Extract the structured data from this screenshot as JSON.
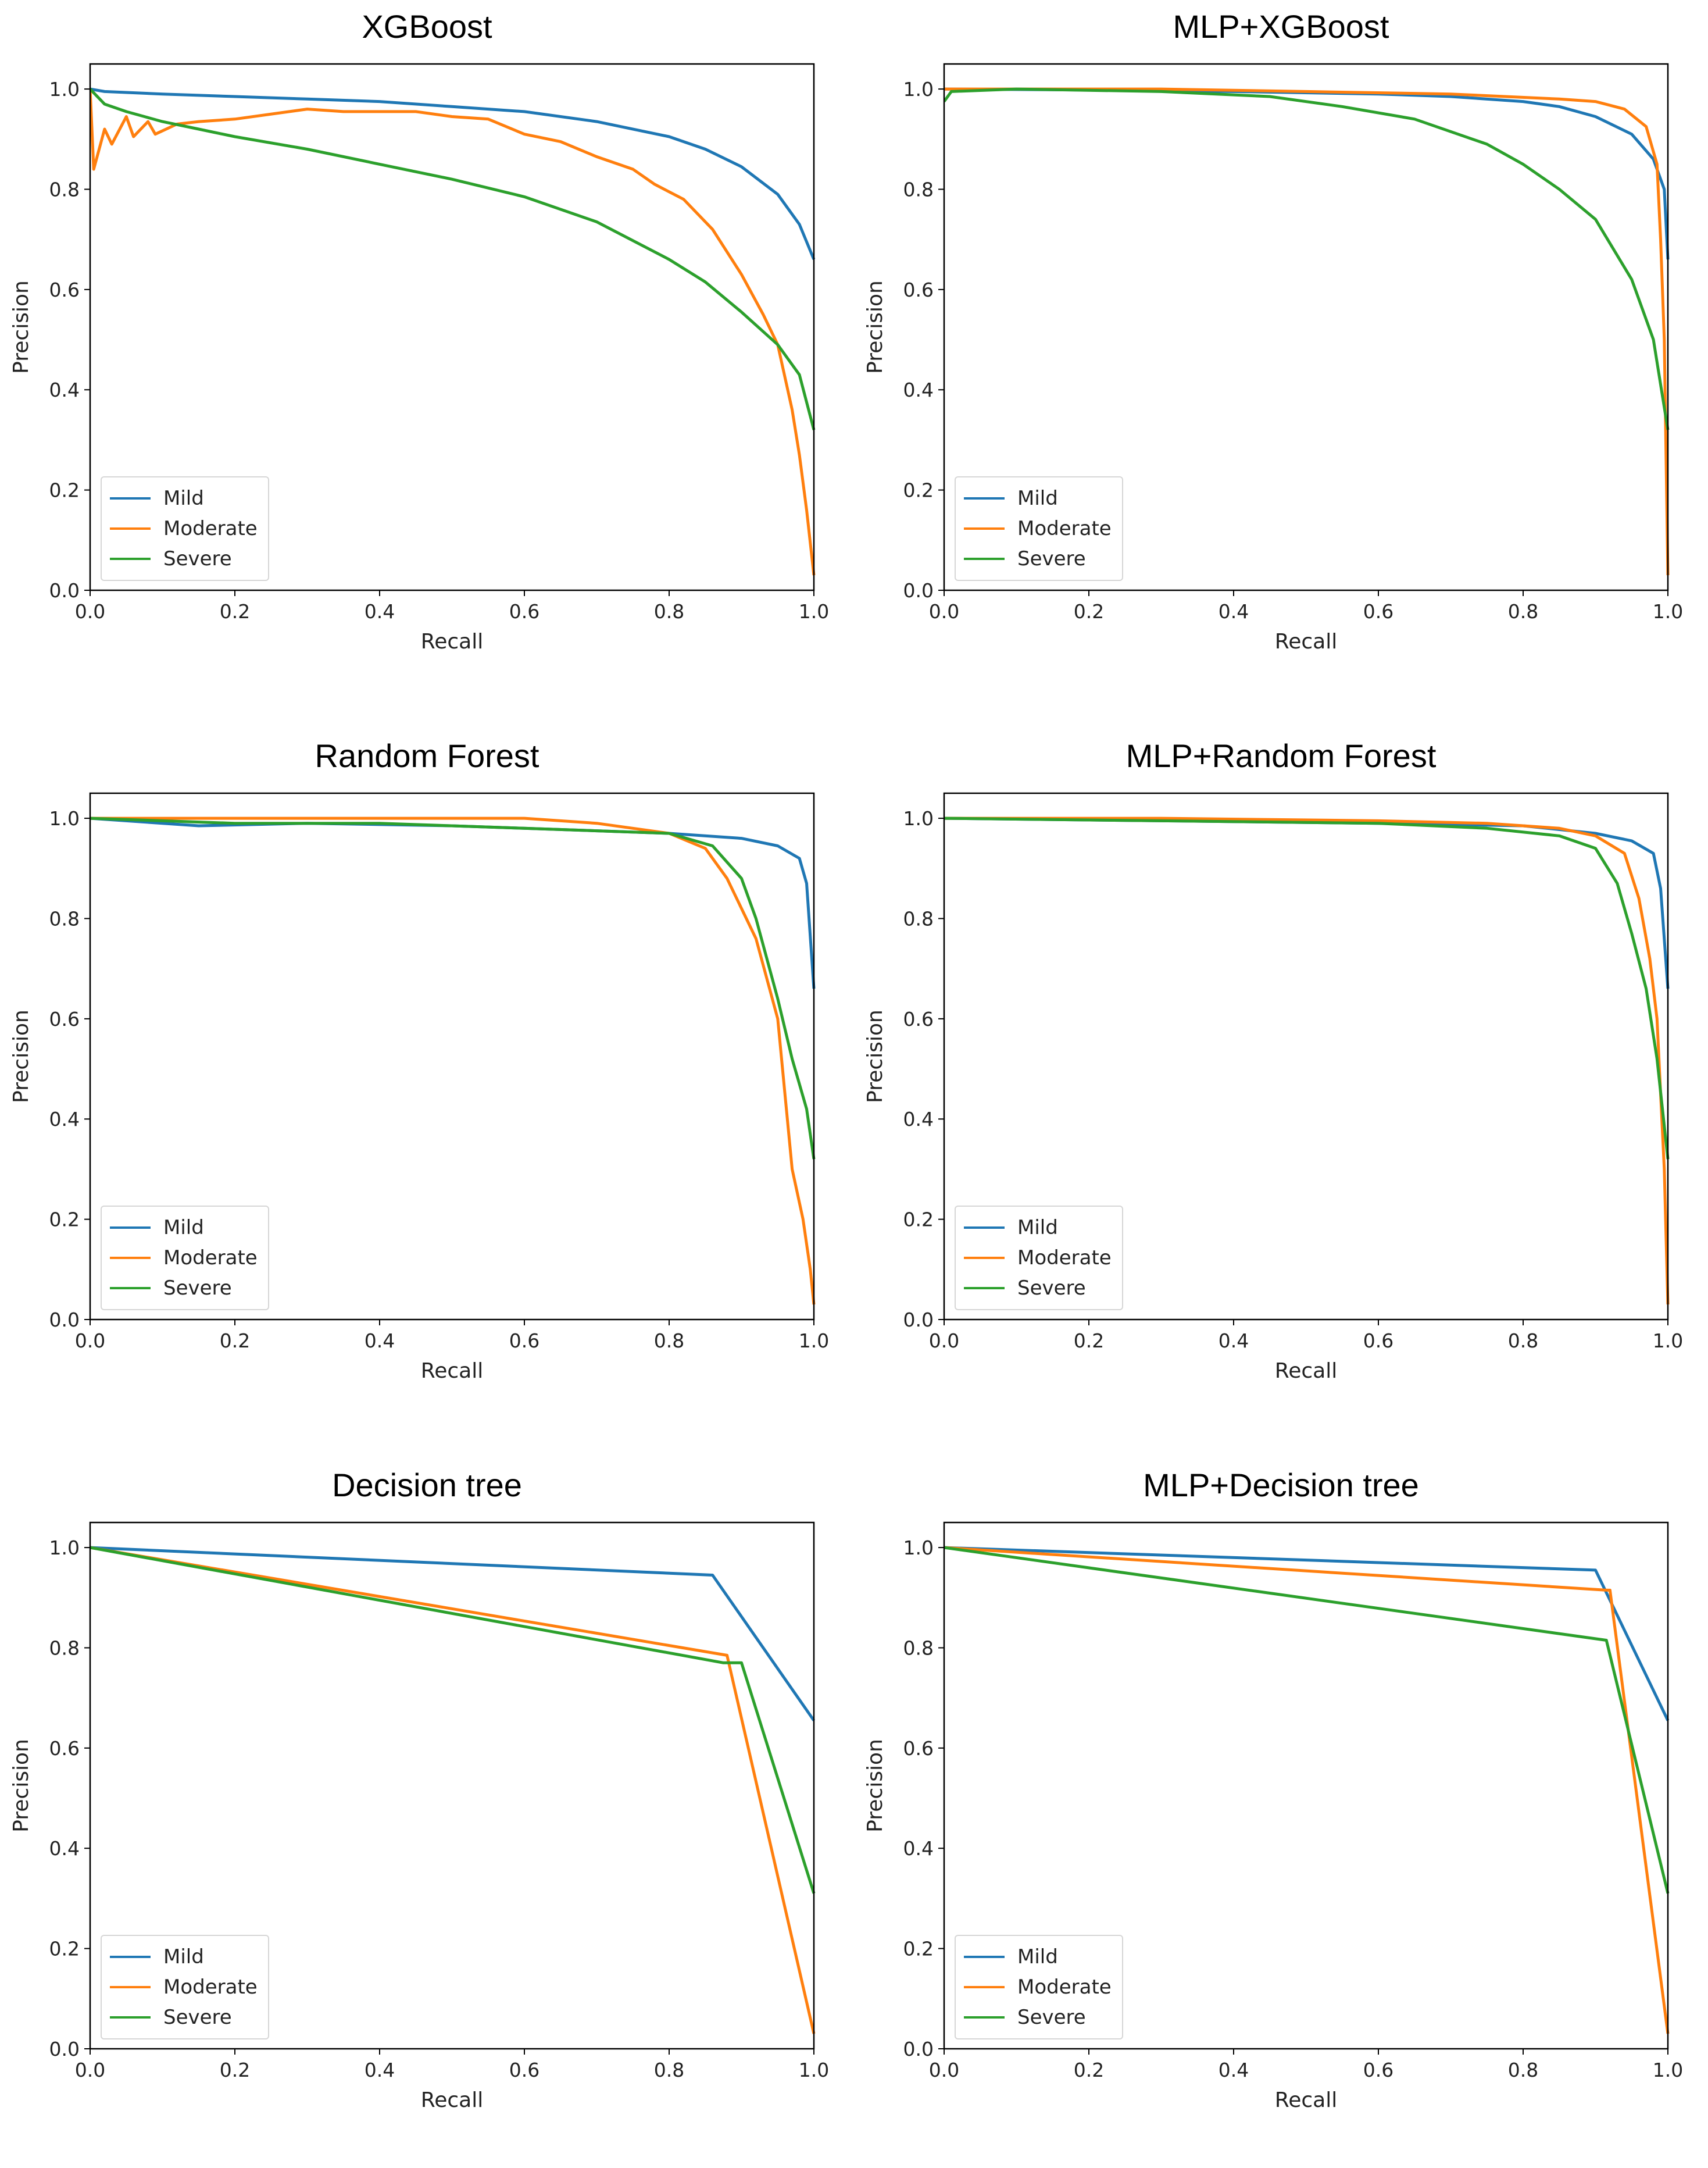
{
  "chart_data": [
    {
      "type": "line",
      "title": "XGBoost",
      "xlabel": "Recall",
      "ylabel": "Precision",
      "xlim": [
        0,
        1
      ],
      "ylim": [
        0,
        1.05
      ],
      "xticks": [
        "0.0",
        "0.2",
        "0.4",
        "0.6",
        "0.8",
        "1.0"
      ],
      "yticks": [
        "0.0",
        "0.2",
        "0.4",
        "0.6",
        "0.8",
        "1.0"
      ],
      "legend": "bottom-left",
      "series": [
        {
          "name": "Mild",
          "color": "#1f77b4",
          "points": [
            [
              0,
              1.0
            ],
            [
              0.02,
              0.995
            ],
            [
              0.1,
              0.99
            ],
            [
              0.2,
              0.985
            ],
            [
              0.3,
              0.98
            ],
            [
              0.4,
              0.975
            ],
            [
              0.5,
              0.965
            ],
            [
              0.6,
              0.955
            ],
            [
              0.7,
              0.935
            ],
            [
              0.8,
              0.905
            ],
            [
              0.85,
              0.88
            ],
            [
              0.9,
              0.845
            ],
            [
              0.95,
              0.79
            ],
            [
              0.98,
              0.73
            ],
            [
              1.0,
              0.66
            ]
          ]
        },
        {
          "name": "Moderate",
          "color": "#ff7f0e",
          "points": [
            [
              0,
              1.0
            ],
            [
              0.005,
              0.84
            ],
            [
              0.02,
              0.92
            ],
            [
              0.03,
              0.89
            ],
            [
              0.05,
              0.945
            ],
            [
              0.06,
              0.905
            ],
            [
              0.08,
              0.935
            ],
            [
              0.09,
              0.91
            ],
            [
              0.12,
              0.93
            ],
            [
              0.15,
              0.935
            ],
            [
              0.2,
              0.94
            ],
            [
              0.3,
              0.96
            ],
            [
              0.35,
              0.955
            ],
            [
              0.45,
              0.955
            ],
            [
              0.5,
              0.945
            ],
            [
              0.55,
              0.94
            ],
            [
              0.6,
              0.91
            ],
            [
              0.65,
              0.895
            ],
            [
              0.7,
              0.865
            ],
            [
              0.75,
              0.84
            ],
            [
              0.78,
              0.81
            ],
            [
              0.82,
              0.78
            ],
            [
              0.86,
              0.72
            ],
            [
              0.9,
              0.63
            ],
            [
              0.93,
              0.55
            ],
            [
              0.95,
              0.49
            ],
            [
              0.97,
              0.36
            ],
            [
              0.98,
              0.27
            ],
            [
              0.99,
              0.16
            ],
            [
              1.0,
              0.03
            ]
          ]
        },
        {
          "name": "Severe",
          "color": "#2ca02c",
          "points": [
            [
              0,
              1.0
            ],
            [
              0.02,
              0.97
            ],
            [
              0.05,
              0.955
            ],
            [
              0.1,
              0.935
            ],
            [
              0.15,
              0.92
            ],
            [
              0.2,
              0.905
            ],
            [
              0.3,
              0.88
            ],
            [
              0.4,
              0.85
            ],
            [
              0.5,
              0.82
            ],
            [
              0.6,
              0.785
            ],
            [
              0.7,
              0.735
            ],
            [
              0.8,
              0.66
            ],
            [
              0.85,
              0.615
            ],
            [
              0.9,
              0.555
            ],
            [
              0.95,
              0.49
            ],
            [
              0.98,
              0.43
            ],
            [
              1.0,
              0.32
            ]
          ]
        }
      ]
    },
    {
      "type": "line",
      "title": "MLP+XGBoost",
      "xlabel": "Recall",
      "ylabel": "Precision",
      "xlim": [
        0,
        1
      ],
      "ylim": [
        0,
        1.05
      ],
      "xticks": [
        "0.0",
        "0.2",
        "0.4",
        "0.6",
        "0.8",
        "1.0"
      ],
      "yticks": [
        "0.0",
        "0.2",
        "0.4",
        "0.6",
        "0.8",
        "1.0"
      ],
      "legend": "bottom-left",
      "series": [
        {
          "name": "Mild",
          "color": "#1f77b4",
          "points": [
            [
              0,
              1.0
            ],
            [
              0.2,
              0.998
            ],
            [
              0.4,
              0.995
            ],
            [
              0.6,
              0.99
            ],
            [
              0.7,
              0.985
            ],
            [
              0.8,
              0.975
            ],
            [
              0.85,
              0.965
            ],
            [
              0.9,
              0.945
            ],
            [
              0.95,
              0.91
            ],
            [
              0.98,
              0.86
            ],
            [
              0.995,
              0.8
            ],
            [
              1.0,
              0.66
            ]
          ]
        },
        {
          "name": "Moderate",
          "color": "#ff7f0e",
          "points": [
            [
              0,
              1.0
            ],
            [
              0.3,
              1.0
            ],
            [
              0.5,
              0.995
            ],
            [
              0.7,
              0.99
            ],
            [
              0.85,
              0.98
            ],
            [
              0.9,
              0.975
            ],
            [
              0.94,
              0.96
            ],
            [
              0.97,
              0.925
            ],
            [
              0.985,
              0.85
            ],
            [
              0.99,
              0.7
            ],
            [
              0.995,
              0.5
            ],
            [
              1.0,
              0.03
            ]
          ]
        },
        {
          "name": "Severe",
          "color": "#2ca02c",
          "points": [
            [
              0,
              0.975
            ],
            [
              0.01,
              0.995
            ],
            [
              0.1,
              1.0
            ],
            [
              0.3,
              0.995
            ],
            [
              0.45,
              0.985
            ],
            [
              0.55,
              0.965
            ],
            [
              0.65,
              0.94
            ],
            [
              0.75,
              0.89
            ],
            [
              0.8,
              0.85
            ],
            [
              0.85,
              0.8
            ],
            [
              0.9,
              0.74
            ],
            [
              0.95,
              0.62
            ],
            [
              0.98,
              0.5
            ],
            [
              1.0,
              0.32
            ]
          ]
        }
      ]
    },
    {
      "type": "line",
      "title": "Random Forest",
      "xlabel": "Recall",
      "ylabel": "Precision",
      "xlim": [
        0,
        1
      ],
      "ylim": [
        0,
        1.05
      ],
      "xticks": [
        "0.0",
        "0.2",
        "0.4",
        "0.6",
        "0.8",
        "1.0"
      ],
      "yticks": [
        "0.0",
        "0.2",
        "0.4",
        "0.6",
        "0.8",
        "1.0"
      ],
      "legend": "bottom-left",
      "series": [
        {
          "name": "Mild",
          "color": "#1f77b4",
          "points": [
            [
              0,
              1.0
            ],
            [
              0.15,
              0.985
            ],
            [
              0.3,
              0.99
            ],
            [
              0.5,
              0.985
            ],
            [
              0.7,
              0.975
            ],
            [
              0.8,
              0.97
            ],
            [
              0.9,
              0.96
            ],
            [
              0.95,
              0.945
            ],
            [
              0.98,
              0.92
            ],
            [
              0.99,
              0.87
            ],
            [
              1.0,
              0.66
            ]
          ]
        },
        {
          "name": "Moderate",
          "color": "#ff7f0e",
          "points": [
            [
              0,
              1.0
            ],
            [
              0.3,
              1.0
            ],
            [
              0.6,
              1.0
            ],
            [
              0.7,
              0.99
            ],
            [
              0.8,
              0.97
            ],
            [
              0.85,
              0.94
            ],
            [
              0.88,
              0.88
            ],
            [
              0.92,
              0.76
            ],
            [
              0.95,
              0.6
            ],
            [
              0.96,
              0.45
            ],
            [
              0.97,
              0.3
            ],
            [
              0.985,
              0.2
            ],
            [
              0.995,
              0.1
            ],
            [
              1.0,
              0.03
            ]
          ]
        },
        {
          "name": "Severe",
          "color": "#2ca02c",
          "points": [
            [
              0,
              1.0
            ],
            [
              0.2,
              0.99
            ],
            [
              0.4,
              0.99
            ],
            [
              0.6,
              0.98
            ],
            [
              0.7,
              0.975
            ],
            [
              0.8,
              0.97
            ],
            [
              0.86,
              0.945
            ],
            [
              0.9,
              0.88
            ],
            [
              0.92,
              0.8
            ],
            [
              0.95,
              0.64
            ],
            [
              0.97,
              0.52
            ],
            [
              0.99,
              0.42
            ],
            [
              1.0,
              0.32
            ]
          ]
        }
      ]
    },
    {
      "type": "line",
      "title": "MLP+Random Forest",
      "xlabel": "Recall",
      "ylabel": "Precision",
      "xlim": [
        0,
        1
      ],
      "ylim": [
        0,
        1.05
      ],
      "xticks": [
        "0.0",
        "0.2",
        "0.4",
        "0.6",
        "0.8",
        "1.0"
      ],
      "yticks": [
        "0.0",
        "0.2",
        "0.4",
        "0.6",
        "0.8",
        "1.0"
      ],
      "legend": "bottom-left",
      "series": [
        {
          "name": "Mild",
          "color": "#1f77b4",
          "points": [
            [
              0,
              1.0
            ],
            [
              0.3,
              0.995
            ],
            [
              0.6,
              0.99
            ],
            [
              0.8,
              0.985
            ],
            [
              0.9,
              0.97
            ],
            [
              0.95,
              0.955
            ],
            [
              0.98,
              0.93
            ],
            [
              0.99,
              0.86
            ],
            [
              1.0,
              0.66
            ]
          ]
        },
        {
          "name": "Moderate",
          "color": "#ff7f0e",
          "points": [
            [
              0,
              1.0
            ],
            [
              0.3,
              1.0
            ],
            [
              0.6,
              0.995
            ],
            [
              0.75,
              0.99
            ],
            [
              0.85,
              0.98
            ],
            [
              0.9,
              0.965
            ],
            [
              0.94,
              0.93
            ],
            [
              0.96,
              0.84
            ],
            [
              0.975,
              0.72
            ],
            [
              0.985,
              0.6
            ],
            [
              0.99,
              0.45
            ],
            [
              0.995,
              0.3
            ],
            [
              1.0,
              0.03
            ]
          ]
        },
        {
          "name": "Severe",
          "color": "#2ca02c",
          "points": [
            [
              0,
              1.0
            ],
            [
              0.3,
              0.995
            ],
            [
              0.6,
              0.99
            ],
            [
              0.75,
              0.98
            ],
            [
              0.85,
              0.965
            ],
            [
              0.9,
              0.94
            ],
            [
              0.93,
              0.87
            ],
            [
              0.95,
              0.77
            ],
            [
              0.97,
              0.66
            ],
            [
              0.985,
              0.52
            ],
            [
              1.0,
              0.32
            ]
          ]
        }
      ]
    },
    {
      "type": "line",
      "title": "Decision tree",
      "xlabel": "Recall",
      "ylabel": "Precision",
      "xlim": [
        0,
        1
      ],
      "ylim": [
        0,
        1.05
      ],
      "xticks": [
        "0.0",
        "0.2",
        "0.4",
        "0.6",
        "0.8",
        "1.0"
      ],
      "yticks": [
        "0.0",
        "0.2",
        "0.4",
        "0.6",
        "0.8",
        "1.0"
      ],
      "legend": "bottom-left",
      "series": [
        {
          "name": "Mild",
          "color": "#1f77b4",
          "points": [
            [
              0,
              1.0
            ],
            [
              0.86,
              0.945
            ],
            [
              1.0,
              0.655
            ]
          ]
        },
        {
          "name": "Moderate",
          "color": "#ff7f0e",
          "points": [
            [
              0,
              1.0
            ],
            [
              0.88,
              0.785
            ],
            [
              1.0,
              0.03
            ]
          ]
        },
        {
          "name": "Severe",
          "color": "#2ca02c",
          "points": [
            [
              0,
              1.0
            ],
            [
              0.875,
              0.77
            ],
            [
              0.9,
              0.77
            ],
            [
              1.0,
              0.31
            ]
          ]
        }
      ]
    },
    {
      "type": "line",
      "title": "MLP+Decision tree",
      "xlabel": "Recall",
      "ylabel": "Precision",
      "xlim": [
        0,
        1
      ],
      "ylim": [
        0,
        1.05
      ],
      "xticks": [
        "0.0",
        "0.2",
        "0.4",
        "0.6",
        "0.8",
        "1.0"
      ],
      "yticks": [
        "0.0",
        "0.2",
        "0.4",
        "0.6",
        "0.8",
        "1.0"
      ],
      "legend": "bottom-left",
      "series": [
        {
          "name": "Mild",
          "color": "#1f77b4",
          "points": [
            [
              0,
              1.0
            ],
            [
              0.9,
              0.955
            ],
            [
              1.0,
              0.655
            ]
          ]
        },
        {
          "name": "Moderate",
          "color": "#ff7f0e",
          "points": [
            [
              0,
              1.0
            ],
            [
              0.915,
              0.915
            ],
            [
              0.92,
              0.915
            ],
            [
              1.0,
              0.03
            ]
          ]
        },
        {
          "name": "Severe",
          "color": "#2ca02c",
          "points": [
            [
              0,
              1.0
            ],
            [
              0.915,
              0.815
            ],
            [
              1.0,
              0.31
            ]
          ]
        }
      ]
    }
  ]
}
